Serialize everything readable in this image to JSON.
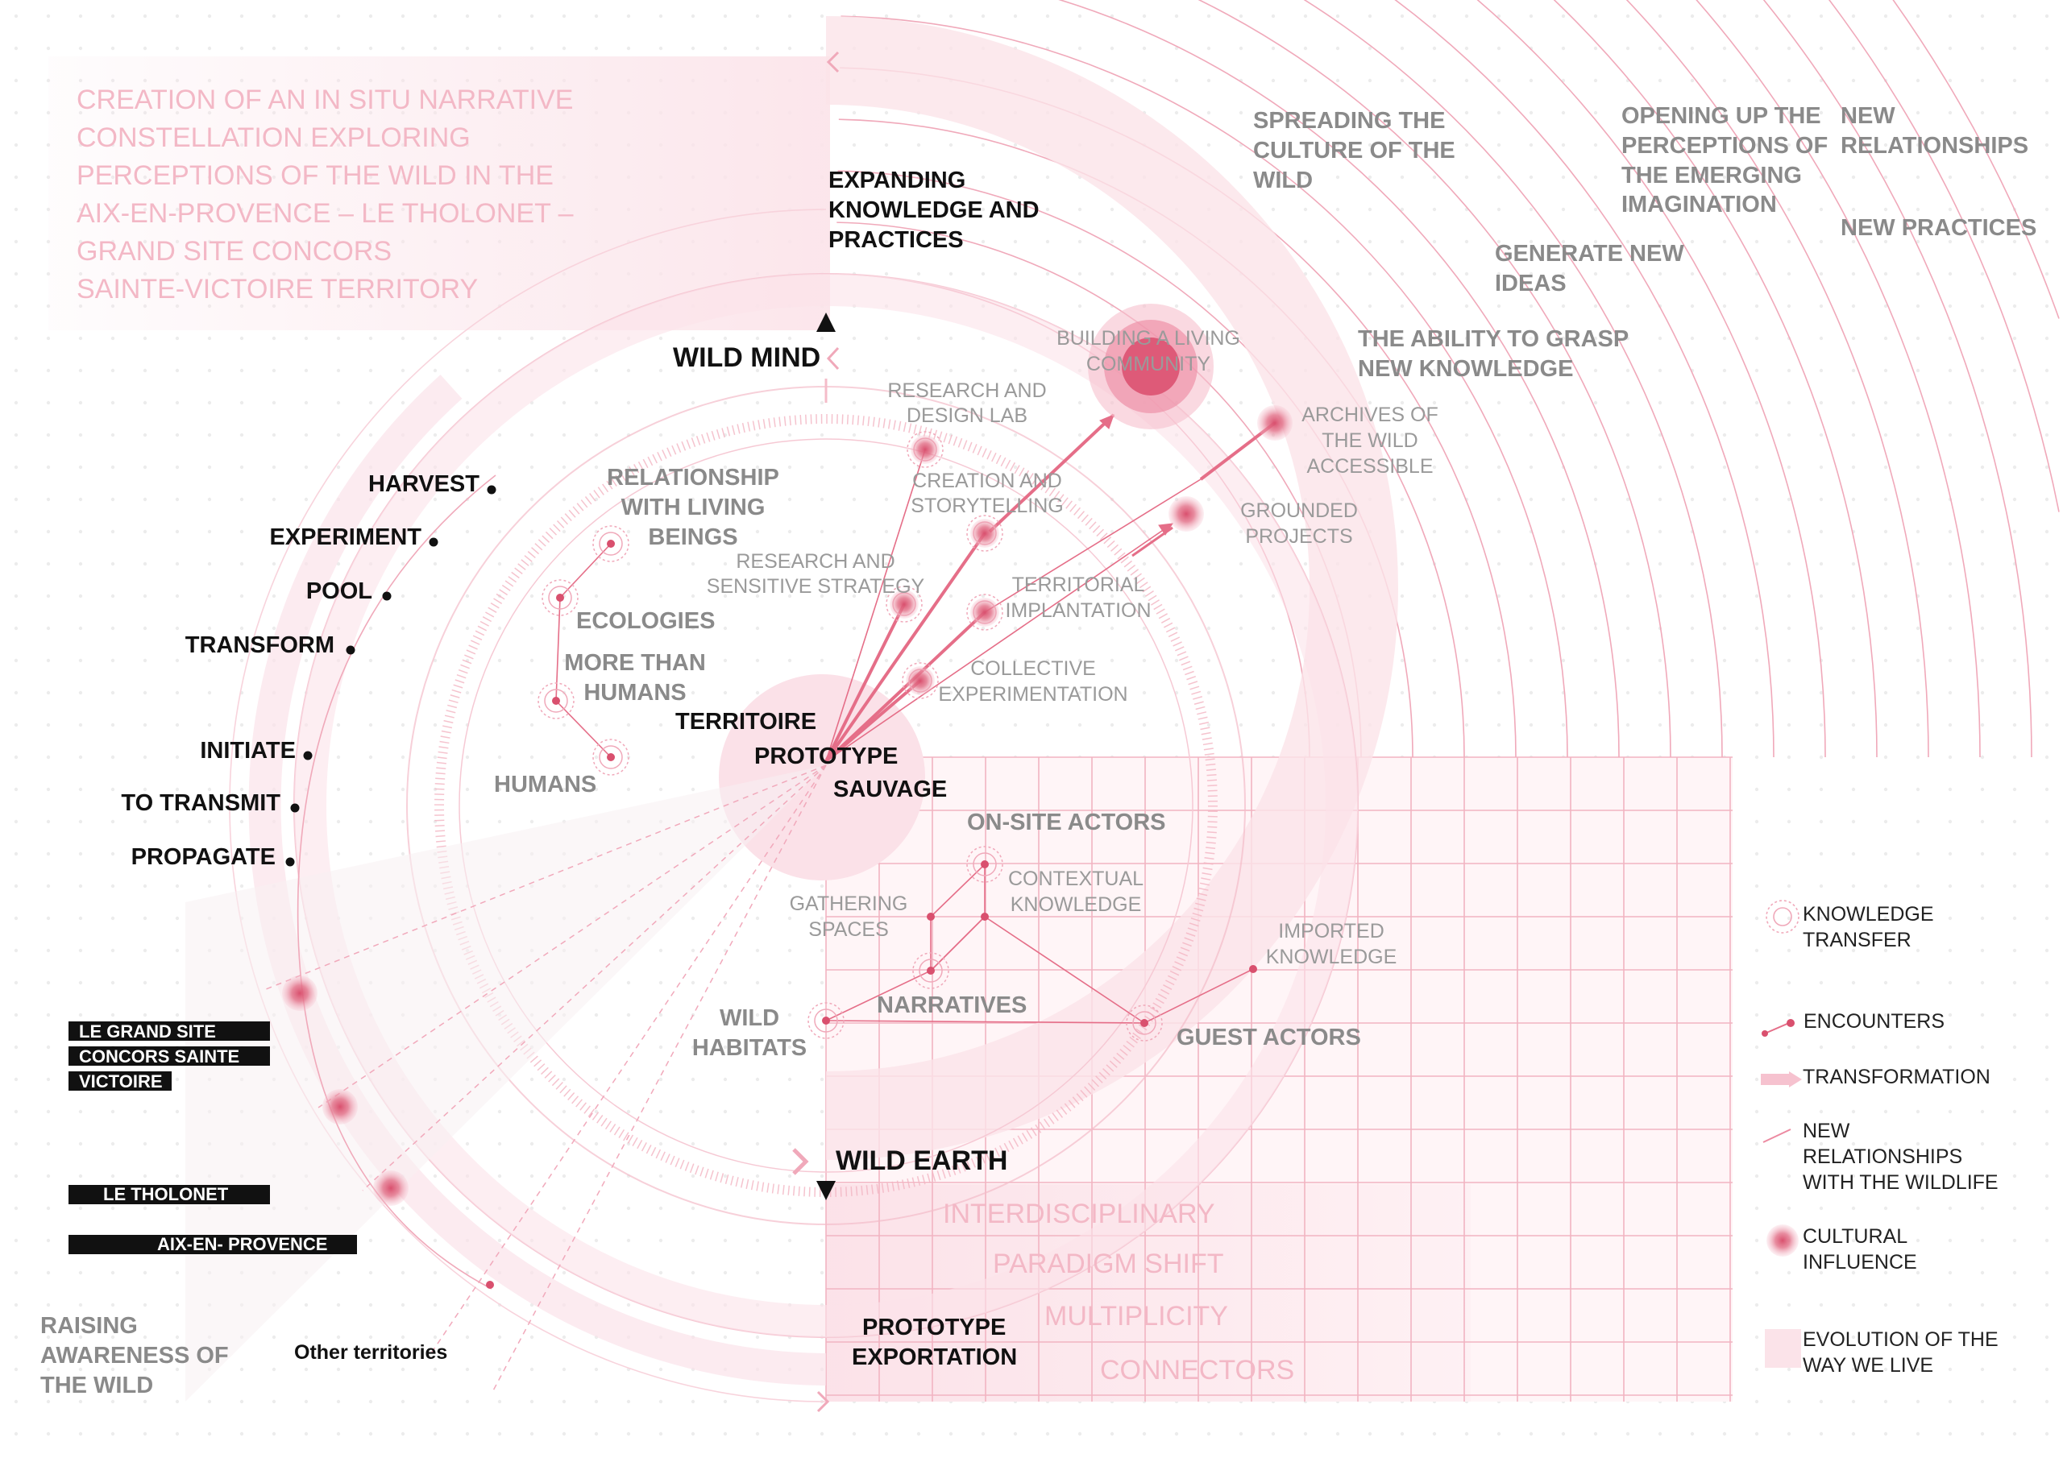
{
  "intro": [
    "CREATION OF AN IN SITU NARRATIVE",
    "CONSTELLATION EXPLORING",
    "PERCEPTIONS OF THE WILD IN THE",
    "AIX-EN-PROVENCE – LE THOLONET –",
    "GRAND SITE CONCORS",
    "SAINTE-VICTOIRE TERRITORY"
  ],
  "axes": {
    "wild_mind": "WILD MIND",
    "wild_earth": "WILD EARTH",
    "expanding": [
      "EXPANDING",
      "KNOWLEDGE AND",
      "PRACTICES"
    ],
    "prototype_export": [
      "PROTOTYPE",
      "EXPORTATION"
    ]
  },
  "center": {
    "l1": "TERRITOIRE",
    "l2": "PROTOTYPE",
    "l3": "SAUVAGE"
  },
  "actions": [
    "HARVEST",
    "EXPERIMENT",
    "POOL",
    "TRANSFORM",
    "INITIATE",
    "TO TRANSMIT",
    "PROPAGATE"
  ],
  "inner_left": {
    "relationship": [
      "RELATIONSHIP",
      "WITH LIVING",
      "BEINGS"
    ],
    "ecologies": "ECOLOGIES",
    "more_than": [
      "MORE THAN",
      "HUMANS"
    ],
    "humans": "HUMANS"
  },
  "inner_nodes": {
    "research_design": [
      "RESEARCH AND",
      "DESIGN LAB"
    ],
    "creation": [
      "CREATION AND",
      "STORYTELLING"
    ],
    "research_sensitive": [
      "RESEARCH AND",
      "SENSITIVE STRATEGY"
    ],
    "territorial": [
      "TERRITORIAL",
      "IMPLANTATION"
    ],
    "collective": [
      "COLLECTIVE",
      "EXPERIMENTATION"
    ]
  },
  "outer_nodes": {
    "building": [
      "BUILDING A LIVING",
      "COMMUNITY"
    ],
    "archives": [
      "ARCHIVES OF",
      "THE WILD",
      "ACCESSIBLE"
    ],
    "grounded": [
      "GROUNDED",
      "PROJECTS"
    ]
  },
  "outcomes": {
    "spreading": [
      "SPREADING THE",
      "CULTURE OF THE",
      "WILD"
    ],
    "opening": [
      "OPENING UP THE",
      "PERCEPTIONS OF",
      "THE EMERGING",
      "IMAGINATION"
    ],
    "new_relationships": [
      "NEW",
      "RELATIONSHIPS"
    ],
    "new_practices": "NEW PRACTICES",
    "generate": [
      "GENERATE NEW",
      "IDEAS"
    ],
    "ability": [
      "THE ABILITY TO GRASP",
      "NEW KNOWLEDGE"
    ]
  },
  "lower": {
    "onsite": "ON-SITE ACTORS",
    "gathering": [
      "GATHERING",
      "SPACES"
    ],
    "contextual": [
      "CONTEXTUAL",
      "KNOWLEDGE"
    ],
    "imported": [
      "IMPORTED",
      "KNOWLEDGE"
    ],
    "narratives": "NARRATIVES",
    "wild_habitats": [
      "WILD",
      "HABITATS"
    ],
    "guest": "GUEST ACTORS"
  },
  "grid_words": [
    "INTERDISCIPLINARY",
    "PARADIGM SHIFT",
    "MULTIPLICITY",
    "CONNECTORS"
  ],
  "places": {
    "grand_site": [
      "LE GRAND SITE",
      "CONCORS SAINTE",
      "VICTOIRE"
    ],
    "tholonet": "LE THOLONET",
    "aix": "AIX-EN- PROVENCE",
    "raising": [
      "RAISING",
      "AWARENESS OF",
      "THE WILD"
    ],
    "other": "Other territories"
  },
  "legend": {
    "knowledge": [
      "KNOWLEDGE",
      "TRANSFER"
    ],
    "encounters": "ENCOUNTERS",
    "transformation": "TRANSFORMATION",
    "new_rel": [
      "NEW",
      "RELATIONSHIPS",
      "WITH THE WILDLIFE"
    ],
    "cultural": [
      "CULTURAL",
      "INFLUENCE"
    ],
    "evolution": [
      "EVOLUTION OF THE",
      "WAY WE LIVE"
    ]
  },
  "colors": {
    "accent": "#d9506e",
    "pink_light": "#fbe3e9",
    "line": "#ec9aad"
  }
}
